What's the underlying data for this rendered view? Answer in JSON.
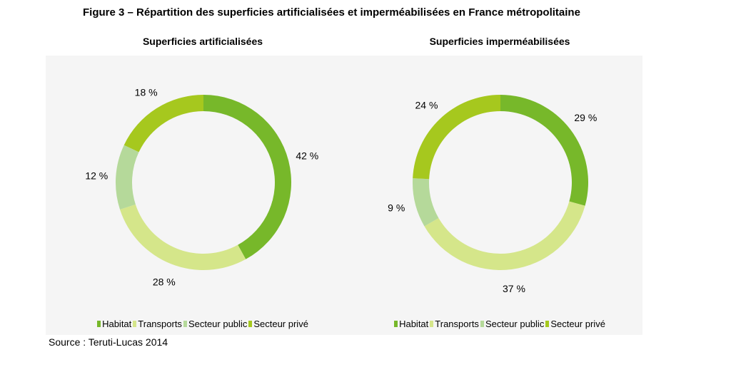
{
  "figure_title": "Figure 3 – Répartition des superficies artificialisées et imperméabilisées en France métropolitaine",
  "source": "Source : Teruti-Lucas 2014",
  "colors": {
    "Habitat": "#77b82a",
    "Transports": "#d5e68a",
    "Secteur public": "#b5d99a",
    "Secteur privé": "#a6c81e"
  },
  "chart_data": [
    {
      "type": "pie",
      "title": "Superficies artificialisées",
      "categories": [
        "Habitat",
        "Transports",
        "Secteur public",
        "Secteur privé"
      ],
      "values": [
        42,
        28,
        12,
        18
      ],
      "labels": [
        "42 %",
        "28 %",
        "12 %",
        "18 %"
      ],
      "donut": true,
      "legend": "bottom"
    },
    {
      "type": "pie",
      "title": "Superficies imperméabilisées",
      "categories": [
        "Habitat",
        "Transports",
        "Secteur public",
        "Secteur privé"
      ],
      "values": [
        29,
        37,
        9,
        24
      ],
      "labels": [
        "29 %",
        "37 %",
        "9 %",
        "24 %"
      ],
      "donut": true,
      "legend": "bottom"
    }
  ]
}
